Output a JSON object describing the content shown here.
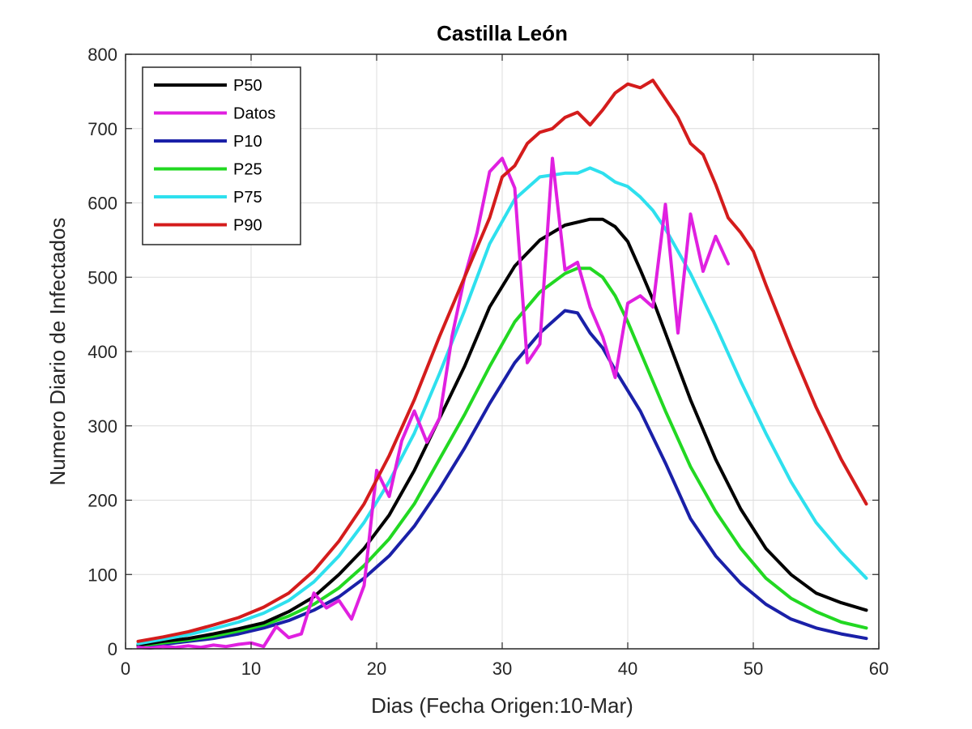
{
  "chart_data": {
    "type": "line",
    "title": "Castilla León",
    "xlabel": "Dias (Fecha Origen:10-Mar)",
    "ylabel": "Numero Diario de Infectados",
    "xlim": [
      0,
      60
    ],
    "ylim": [
      0,
      800
    ],
    "xticks": [
      0,
      10,
      20,
      30,
      40,
      50,
      60
    ],
    "yticks": [
      0,
      100,
      200,
      300,
      400,
      500,
      600,
      700,
      800
    ],
    "grid": true,
    "legend_position": "top-left",
    "series": [
      {
        "name": "P50",
        "color": "#000000",
        "x": [
          1,
          3,
          5,
          7,
          9,
          11,
          13,
          15,
          17,
          19,
          21,
          23,
          25,
          27,
          29,
          31,
          33,
          35,
          37,
          38,
          39,
          40,
          41,
          42,
          43,
          44,
          45,
          47,
          49,
          51,
          53,
          55,
          57,
          59
        ],
        "y": [
          5,
          10,
          14,
          20,
          27,
          35,
          50,
          70,
          100,
          135,
          180,
          240,
          310,
          380,
          460,
          515,
          550,
          570,
          578,
          578,
          568,
          548,
          510,
          470,
          425,
          380,
          335,
          255,
          188,
          135,
          100,
          75,
          62,
          52
        ]
      },
      {
        "name": "Datos",
        "color": "#e020e0",
        "x": [
          1,
          2,
          3,
          4,
          5,
          6,
          7,
          8,
          9,
          10,
          11,
          12,
          13,
          14,
          15,
          16,
          17,
          18,
          19,
          20,
          21,
          22,
          23,
          24,
          25,
          26,
          27,
          28,
          29,
          30,
          31,
          32,
          33,
          34,
          35,
          36,
          37,
          38,
          39,
          40,
          41,
          42,
          43,
          44,
          45,
          46,
          47,
          48
        ],
        "y": [
          2,
          1,
          3,
          2,
          4,
          2,
          5,
          3,
          6,
          8,
          3,
          30,
          15,
          20,
          75,
          55,
          65,
          40,
          85,
          240,
          205,
          280,
          320,
          278,
          310,
          420,
          500,
          560,
          642,
          660,
          620,
          385,
          410,
          660,
          510,
          520,
          460,
          420,
          365,
          465,
          475,
          460,
          598,
          425,
          585,
          508,
          555,
          518
        ]
      },
      {
        "name": "P10",
        "color": "#1a20a8",
        "x": [
          1,
          3,
          5,
          7,
          9,
          11,
          13,
          15,
          17,
          19,
          21,
          23,
          25,
          27,
          29,
          31,
          33,
          35,
          36,
          37,
          38,
          39,
          41,
          43,
          45,
          47,
          49,
          51,
          53,
          55,
          57,
          59
        ],
        "y": [
          3,
          6,
          10,
          14,
          20,
          28,
          38,
          52,
          70,
          95,
          125,
          165,
          215,
          270,
          330,
          385,
          425,
          455,
          452,
          425,
          405,
          375,
          320,
          250,
          175,
          125,
          88,
          60,
          40,
          28,
          20,
          14
        ]
      },
      {
        "name": "P25",
        "color": "#22d822",
        "x": [
          1,
          3,
          5,
          7,
          9,
          11,
          13,
          15,
          17,
          19,
          21,
          23,
          25,
          27,
          29,
          31,
          33,
          35,
          36,
          37,
          38,
          39,
          40,
          41,
          43,
          45,
          47,
          49,
          51,
          53,
          55,
          57,
          59
        ],
        "y": [
          4,
          8,
          12,
          17,
          24,
          32,
          44,
          60,
          82,
          112,
          148,
          195,
          255,
          315,
          380,
          440,
          480,
          505,
          512,
          512,
          500,
          475,
          440,
          400,
          320,
          245,
          185,
          135,
          95,
          68,
          50,
          36,
          28
        ]
      },
      {
        "name": "P75",
        "color": "#2ee0ee",
        "x": [
          1,
          3,
          5,
          7,
          9,
          11,
          13,
          15,
          17,
          19,
          21,
          23,
          25,
          27,
          29,
          31,
          33,
          35,
          36,
          37,
          38,
          39,
          40,
          41,
          42,
          43,
          45,
          47,
          49,
          51,
          53,
          55,
          57,
          59
        ],
        "y": [
          7,
          13,
          19,
          27,
          36,
          48,
          65,
          90,
          125,
          170,
          225,
          290,
          370,
          455,
          545,
          605,
          635,
          640,
          640,
          647,
          640,
          628,
          622,
          608,
          590,
          565,
          505,
          435,
          360,
          290,
          225,
          170,
          130,
          95
        ]
      },
      {
        "name": "P90",
        "color": "#d41c1c",
        "x": [
          1,
          3,
          5,
          7,
          9,
          11,
          13,
          15,
          17,
          19,
          21,
          23,
          25,
          27,
          29,
          30,
          31,
          32,
          33,
          34,
          35,
          36,
          37,
          38,
          39,
          40,
          41,
          42,
          43,
          44,
          45,
          46,
          47,
          48,
          49,
          50,
          51,
          53,
          55,
          57,
          59
        ],
        "y": [
          10,
          16,
          23,
          32,
          42,
          56,
          75,
          105,
          145,
          195,
          260,
          335,
          420,
          500,
          580,
          635,
          650,
          680,
          695,
          700,
          715,
          722,
          705,
          725,
          748,
          760,
          755,
          765,
          740,
          715,
          680,
          665,
          625,
          580,
          560,
          535,
          490,
          405,
          325,
          255,
          195
        ]
      }
    ]
  }
}
